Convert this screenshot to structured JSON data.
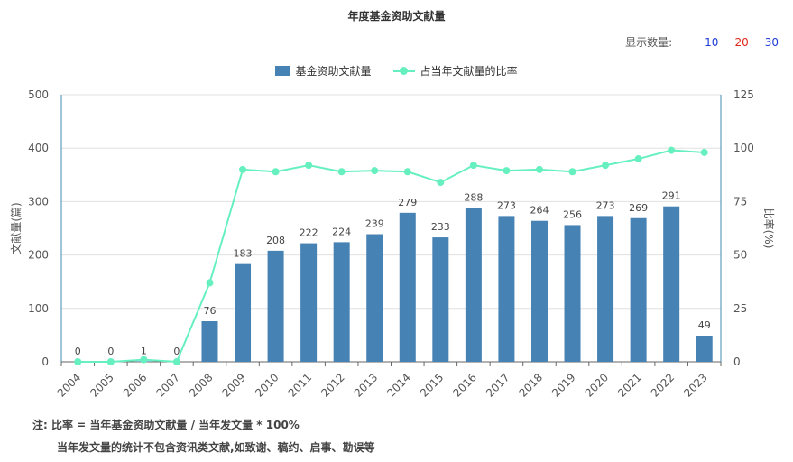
{
  "title": "年度基金资助文献量",
  "display_count": {
    "label": "显示数量:",
    "options": [
      {
        "label": "10",
        "color": "#1c39d6"
      },
      {
        "label": "20",
        "color": "#e0261b"
      },
      {
        "label": "30",
        "color": "#1c39d6"
      }
    ]
  },
  "notes": {
    "line1": "注:  比率 = 当年基金资助文献量 / 当年发文量 * 100%",
    "line2": "当年发文量的统计不包含资讯类文献,如致谢、稿约、启事、勘误等"
  },
  "chart_data": {
    "type": "bar",
    "title": "年度基金资助文献量",
    "categories": [
      "2004",
      "2005",
      "2006",
      "2007",
      "2008",
      "2009",
      "2010",
      "2011",
      "2012",
      "2013",
      "2014",
      "2015",
      "2016",
      "2017",
      "2018",
      "2019",
      "2020",
      "2021",
      "2022",
      "2023"
    ],
    "series": [
      {
        "name": "基金资助文献量",
        "type": "bar",
        "axis": "left",
        "color": "#4682b4",
        "values": [
          0,
          0,
          1,
          0,
          76,
          183,
          208,
          222,
          224,
          239,
          279,
          233,
          288,
          273,
          264,
          256,
          273,
          269,
          291,
          49
        ]
      },
      {
        "name": "占当年文献量的比率",
        "type": "line",
        "axis": "right",
        "color": "#66f0c0",
        "values": [
          0,
          0,
          1,
          0,
          37,
          90,
          89,
          92,
          89,
          89.5,
          89,
          84,
          92,
          89.5,
          90,
          89,
          92,
          95,
          99,
          98
        ]
      }
    ],
    "ylabel": "文献量(篇)",
    "y2label": "比率(%)",
    "ylim": [
      0,
      500
    ],
    "y2lim": [
      0,
      125
    ],
    "yticks": [
      0,
      100,
      200,
      300,
      400,
      500
    ],
    "y2ticks": [
      0,
      25,
      50,
      75,
      100,
      125
    ],
    "grid": true,
    "legend": "top-center"
  }
}
